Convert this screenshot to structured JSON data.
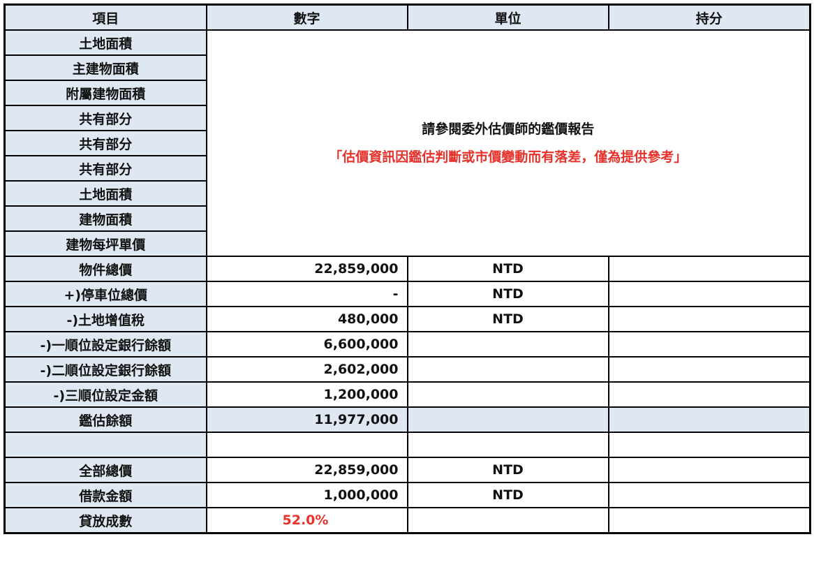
{
  "header": [
    "項目",
    "數字",
    "單位",
    "持分"
  ],
  "area_labels": [
    "土地面積",
    "主建物面積",
    "附屬建物面積",
    "共有部分",
    "共有部分",
    "共有部分",
    "土地面積",
    "建物面積",
    "建物每坪單價"
  ],
  "note": {
    "line1": "請參閱委外估價師的鑑價報告",
    "line2": "「估價資訊因鑑估判斷或市價變動而有落差，僅為提供參考」"
  },
  "rows": [
    {
      "label": "物件總價",
      "value": "22,859,000",
      "unit": "NTD"
    },
    {
      "label": "+)停車位總價",
      "value": "-",
      "unit": "NTD"
    },
    {
      "label": "-)土地增值稅",
      "value": "480,000",
      "unit": "NTD"
    },
    {
      "label": "-)一順位設定銀行餘額",
      "value": "6,600,000",
      "unit": ""
    },
    {
      "label": "-)二順位設定銀行餘額",
      "value": "2,602,000",
      "unit": ""
    },
    {
      "label": "-)三順位設定金額",
      "value": "1,200,000",
      "unit": ""
    },
    {
      "label": "鑑估餘額",
      "value": "11,977,000",
      "unit": ""
    },
    {
      "label": "",
      "value": "",
      "unit": ""
    },
    {
      "label": "全部總價",
      "value": "22,859,000",
      "unit": "NTD"
    },
    {
      "label": "借款金額",
      "value": "1,000,000",
      "unit": "NTD"
    }
  ],
  "ltv": {
    "label": "貸放成數",
    "value": "52.0%"
  },
  "colors": {
    "header_bg": "#dee7f2",
    "warning": "#e8312b"
  }
}
